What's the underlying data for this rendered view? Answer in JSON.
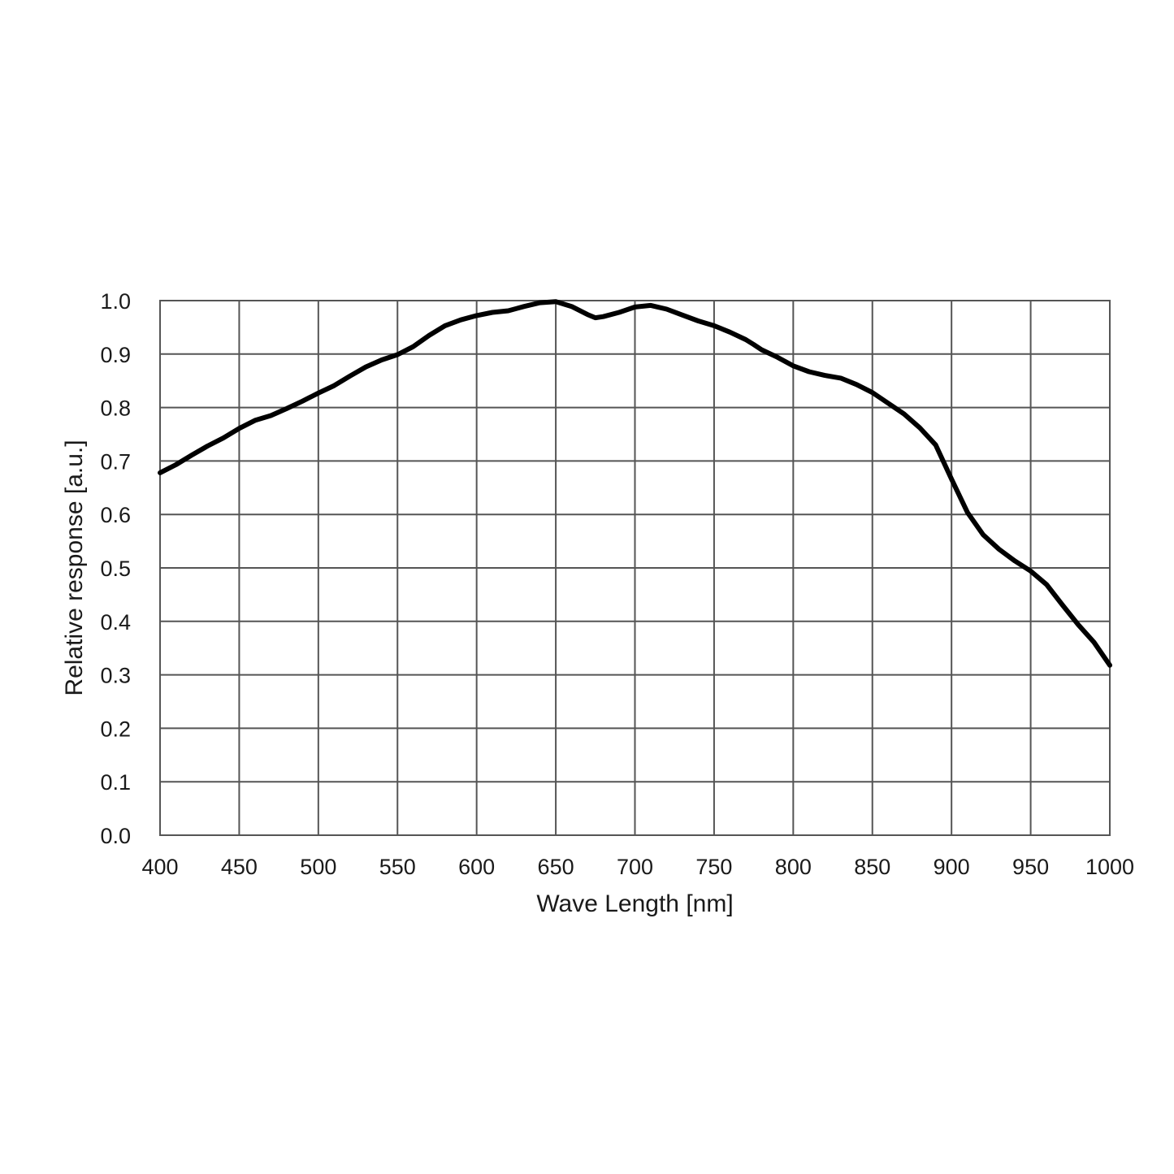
{
  "chart_data": {
    "type": "line",
    "title": "",
    "xlabel": "Wave Length [nm]",
    "ylabel": "Relative response [a.u.]",
    "xlim": [
      400,
      1000
    ],
    "ylim": [
      0.0,
      1.0
    ],
    "x_ticks": [
      "400",
      "450",
      "500",
      "550",
      "600",
      "650",
      "700",
      "750",
      "800",
      "850",
      "900",
      "950",
      "1000"
    ],
    "y_ticks": [
      "0.0",
      "0.1",
      "0.2",
      "0.3",
      "0.4",
      "0.5",
      "0.6",
      "0.7",
      "0.8",
      "0.9",
      "1.0"
    ],
    "grid": true,
    "legend": "none",
    "line_color": "#000000",
    "series": [
      {
        "x": [
          400,
          410,
          420,
          430,
          440,
          450,
          460,
          470,
          480,
          490,
          500,
          510,
          520,
          530,
          540,
          550,
          560,
          570,
          580,
          590,
          600,
          610,
          620,
          630,
          640,
          650,
          660,
          670,
          675,
          680,
          690,
          700,
          710,
          720,
          730,
          740,
          750,
          760,
          770,
          775,
          780,
          790,
          800,
          810,
          820,
          830,
          840,
          850,
          860,
          870,
          880,
          890,
          900,
          910,
          920,
          930,
          940,
          950,
          960,
          970,
          980,
          990,
          1000
        ],
        "y": [
          0.678,
          0.693,
          0.711,
          0.728,
          0.743,
          0.761,
          0.776,
          0.785,
          0.798,
          0.812,
          0.827,
          0.841,
          0.859,
          0.876,
          0.889,
          0.899,
          0.914,
          0.935,
          0.953,
          0.964,
          0.972,
          0.978,
          0.981,
          0.989,
          0.996,
          0.998,
          0.989,
          0.974,
          0.968,
          0.97,
          0.978,
          0.988,
          0.991,
          0.984,
          0.973,
          0.962,
          0.953,
          0.941,
          0.927,
          0.918,
          0.908,
          0.894,
          0.878,
          0.867,
          0.86,
          0.855,
          0.843,
          0.828,
          0.808,
          0.788,
          0.762,
          0.73,
          0.666,
          0.604,
          0.562,
          0.535,
          0.513,
          0.494,
          0.469,
          0.431,
          0.394,
          0.361,
          0.318
        ]
      }
    ]
  }
}
